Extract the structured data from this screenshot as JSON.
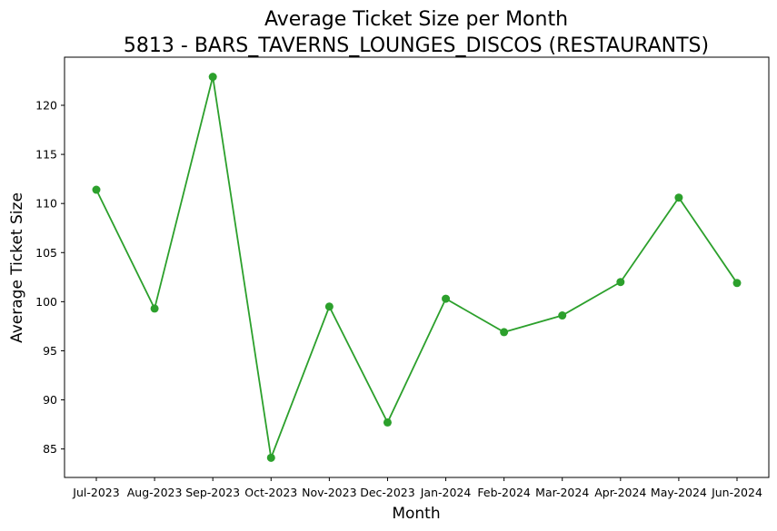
{
  "chart_data": {
    "type": "line",
    "title_line1": "Average Ticket Size per Month",
    "title_line2": "5813 - BARS_TAVERNS_LOUNGES_DISCOS (RESTAURANTS)",
    "xlabel": "Month",
    "ylabel": "Average Ticket Size",
    "categories": [
      "Jul-2023",
      "Aug-2023",
      "Sep-2023",
      "Oct-2023",
      "Nov-2023",
      "Dec-2023",
      "Jan-2024",
      "Feb-2024",
      "Mar-2024",
      "Apr-2024",
      "May-2024",
      "Jun-2024"
    ],
    "series": [
      {
        "values": [
          111.4,
          99.3,
          122.9,
          84.1,
          99.5,
          87.7,
          100.3,
          96.9,
          98.6,
          102.0,
          110.6,
          101.9
        ],
        "color": "#2ca02c",
        "marker": "circle"
      }
    ],
    "ylim": [
      82.1,
      124.9
    ],
    "yticks": [
      85,
      90,
      95,
      100,
      105,
      110,
      115,
      120
    ],
    "grid": false,
    "legend": "none"
  }
}
